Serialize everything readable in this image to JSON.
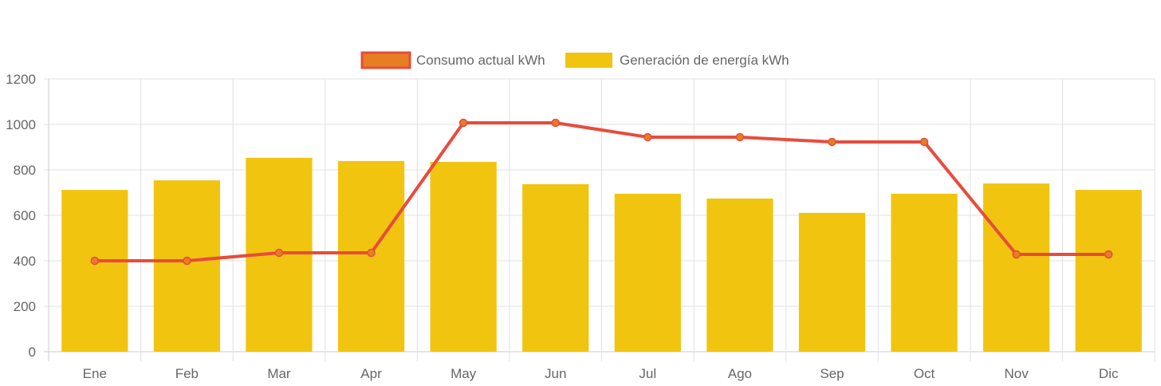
{
  "chart_data": {
    "type": "bar",
    "title": "",
    "xlabel": "",
    "ylabel": "",
    "ylim": [
      0,
      1200
    ],
    "yticks": [
      0,
      200,
      400,
      600,
      800,
      1000,
      1200
    ],
    "grid": true,
    "legend_position": "top-center",
    "categories": [
      "Ene",
      "Feb",
      "Mar",
      "Apr",
      "May",
      "Jun",
      "Jul",
      "Ago",
      "Sep",
      "Oct",
      "Nov",
      "Dic"
    ],
    "series": [
      {
        "name": "Consumo actual kWh",
        "type": "line",
        "color": "#e74c3c",
        "point_color": "#e67e22",
        "values": [
          400,
          400,
          435,
          435,
          1007,
          1007,
          944,
          944,
          923,
          923,
          428,
          428
        ]
      },
      {
        "name": "Generación de energía kWh",
        "type": "bar",
        "color": "#f1c40f",
        "values": [
          712,
          754,
          853,
          839,
          835,
          737,
          695,
          674,
          611,
          695,
          740,
          712
        ]
      }
    ]
  }
}
